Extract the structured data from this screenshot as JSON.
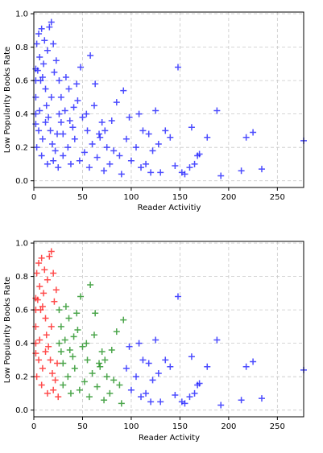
{
  "chart_data": [
    {
      "type": "scatter",
      "marker": "plus",
      "xlabel": "Reader Activitiy",
      "ylabel": "Low Popularity Books Rate",
      "xlim": [
        0,
        277
      ],
      "ylim": [
        -0.04,
        1.01
      ],
      "xticks": [
        0,
        50,
        100,
        150,
        200,
        250
      ],
      "yticks": [
        0.0,
        0.2,
        0.4,
        0.6,
        0.8,
        1.0
      ],
      "xtick_labels": [
        "0",
        "50",
        "100",
        "150",
        "200",
        "250"
      ],
      "ytick_labels": [
        "0.0",
        "0.2",
        "0.4",
        "0.6",
        "0.8",
        "1.0"
      ],
      "grid": true,
      "series": [
        {
          "color": "#0000ff",
          "points": [
            [
              3,
              0.82
            ],
            [
              5,
              0.88
            ],
            [
              6,
              0.74
            ],
            [
              8,
              0.91
            ],
            [
              9,
              0.62
            ],
            [
              11,
              0.84
            ],
            [
              12,
              0.55
            ],
            [
              14,
              0.78
            ],
            [
              16,
              0.92
            ],
            [
              18,
              0.95
            ],
            [
              10,
              0.7
            ],
            [
              7,
              0.6
            ],
            [
              4,
              0.66
            ],
            [
              13,
              0.45
            ],
            [
              15,
              0.38
            ],
            [
              17,
              0.3
            ],
            [
              19,
              0.22
            ],
            [
              20,
              0.12
            ],
            [
              22,
              0.18
            ],
            [
              24,
              0.28
            ],
            [
              25,
              0.08
            ],
            [
              28,
              0.35
            ],
            [
              30,
              0.15
            ],
            [
              32,
              0.42
            ],
            [
              35,
              0.2
            ],
            [
              36,
              0.55
            ],
            [
              38,
              0.1
            ],
            [
              40,
              0.32
            ],
            [
              42,
              0.25
            ],
            [
              45,
              0.48
            ],
            [
              47,
              0.12
            ],
            [
              48,
              0.68
            ],
            [
              50,
              0.38
            ],
            [
              52,
              0.17
            ],
            [
              55,
              0.3
            ],
            [
              57,
              0.08
            ],
            [
              58,
              0.75
            ],
            [
              60,
              0.22
            ],
            [
              62,
              0.45
            ],
            [
              63,
              0.58
            ],
            [
              65,
              0.14
            ],
            [
              67,
              0.28
            ],
            [
              70,
              0.35
            ],
            [
              72,
              0.06
            ],
            [
              75,
              0.2
            ],
            [
              78,
              0.1
            ],
            [
              80,
              0.36
            ],
            [
              85,
              0.47
            ],
            [
              88,
              0.15
            ],
            [
              90,
              0.04
            ],
            [
              92,
              0.54
            ],
            [
              95,
              0.25
            ],
            [
              98,
              0.38
            ],
            [
              100,
              0.12
            ],
            [
              105,
              0.2
            ],
            [
              108,
              0.4
            ],
            [
              110,
              0.08
            ],
            [
              112,
              0.3
            ],
            [
              115,
              0.1
            ],
            [
              118,
              0.28
            ],
            [
              120,
              0.05
            ],
            [
              122,
              0.18
            ],
            [
              125,
              0.42
            ],
            [
              128,
              0.22
            ],
            [
              130,
              0.05
            ],
            [
              135,
              0.3
            ],
            [
              140,
              0.26
            ],
            [
              145,
              0.09
            ],
            [
              148,
              0.68
            ],
            [
              152,
              0.05
            ],
            [
              155,
              0.04
            ],
            [
              160,
              0.08
            ],
            [
              162,
              0.32
            ],
            [
              165,
              0.1
            ],
            [
              168,
              0.15
            ],
            [
              170,
              0.16
            ],
            [
              178,
              0.26
            ],
            [
              188,
              0.42
            ],
            [
              192,
              0.03
            ],
            [
              213,
              0.06
            ],
            [
              218,
              0.26
            ],
            [
              225,
              0.29
            ],
            [
              234,
              0.07
            ],
            [
              277,
              0.24
            ],
            [
              26,
              0.6
            ],
            [
              28,
              0.5
            ],
            [
              33,
              0.62
            ],
            [
              44,
              0.58
            ],
            [
              20,
              0.82
            ],
            [
              21,
              0.65
            ],
            [
              23,
              0.72
            ],
            [
              18,
              0.5
            ],
            [
              12,
              0.35
            ],
            [
              9,
              0.25
            ],
            [
              6,
              0.42
            ],
            [
              5,
              0.3
            ],
            [
              2,
              0.5
            ],
            [
              2,
              0.4
            ],
            [
              2,
              0.6
            ],
            [
              2,
              0.34
            ],
            [
              2,
              0.67
            ],
            [
              3,
              0.2
            ],
            [
              8,
              0.15
            ],
            [
              14,
              0.1
            ],
            [
              26,
              0.4
            ],
            [
              30,
              0.28
            ],
            [
              37,
              0.36
            ],
            [
              41,
              0.44
            ],
            [
              54,
              0.4
            ],
            [
              68,
              0.26
            ],
            [
              73,
              0.3
            ],
            [
              82,
              0.18
            ]
          ]
        }
      ]
    },
    {
      "type": "scatter",
      "marker": "plus",
      "xlabel": "Reader Activity",
      "ylabel": "Low Popularity Books Rate",
      "xlim": [
        0,
        277
      ],
      "ylim": [
        -0.04,
        1.01
      ],
      "xticks": [
        0,
        50,
        100,
        150,
        200,
        250
      ],
      "yticks": [
        0.0,
        0.2,
        0.4,
        0.6,
        0.8,
        1.0
      ],
      "xtick_labels": [
        "0",
        "50",
        "100",
        "150",
        "200",
        "250"
      ],
      "ytick_labels": [
        "0.0",
        "0.2",
        "0.4",
        "0.6",
        "0.8",
        "1.0"
      ],
      "grid": true,
      "series": [
        {
          "color": "#ff0000",
          "points": [
            [
              3,
              0.82
            ],
            [
              5,
              0.88
            ],
            [
              6,
              0.74
            ],
            [
              8,
              0.91
            ],
            [
              9,
              0.62
            ],
            [
              11,
              0.84
            ],
            [
              12,
              0.55
            ],
            [
              14,
              0.78
            ],
            [
              16,
              0.92
            ],
            [
              18,
              0.95
            ],
            [
              10,
              0.7
            ],
            [
              7,
              0.6
            ],
            [
              4,
              0.66
            ],
            [
              13,
              0.45
            ],
            [
              15,
              0.38
            ],
            [
              17,
              0.3
            ],
            [
              19,
              0.22
            ],
            [
              20,
              0.12
            ],
            [
              22,
              0.18
            ],
            [
              24,
              0.28
            ],
            [
              25,
              0.08
            ],
            [
              20,
              0.82
            ],
            [
              21,
              0.65
            ],
            [
              23,
              0.72
            ],
            [
              18,
              0.5
            ],
            [
              12,
              0.35
            ],
            [
              9,
              0.25
            ],
            [
              6,
              0.42
            ],
            [
              5,
              0.3
            ],
            [
              2,
              0.5
            ],
            [
              2,
              0.4
            ],
            [
              2,
              0.6
            ],
            [
              2,
              0.34
            ],
            [
              2,
              0.67
            ],
            [
              3,
              0.2
            ],
            [
              8,
              0.15
            ],
            [
              14,
              0.1
            ]
          ]
        },
        {
          "color": "#008000",
          "points": [
            [
              28,
              0.35
            ],
            [
              30,
              0.15
            ],
            [
              32,
              0.42
            ],
            [
              35,
              0.2
            ],
            [
              36,
              0.55
            ],
            [
              38,
              0.1
            ],
            [
              40,
              0.32
            ],
            [
              42,
              0.25
            ],
            [
              45,
              0.48
            ],
            [
              47,
              0.12
            ],
            [
              48,
              0.68
            ],
            [
              50,
              0.38
            ],
            [
              52,
              0.17
            ],
            [
              55,
              0.3
            ],
            [
              57,
              0.08
            ],
            [
              58,
              0.75
            ],
            [
              60,
              0.22
            ],
            [
              62,
              0.45
            ],
            [
              63,
              0.58
            ],
            [
              65,
              0.14
            ],
            [
              67,
              0.28
            ],
            [
              70,
              0.35
            ],
            [
              72,
              0.06
            ],
            [
              75,
              0.2
            ],
            [
              78,
              0.1
            ],
            [
              80,
              0.36
            ],
            [
              85,
              0.47
            ],
            [
              88,
              0.15
            ],
            [
              90,
              0.04
            ],
            [
              26,
              0.6
            ],
            [
              28,
              0.5
            ],
            [
              33,
              0.62
            ],
            [
              44,
              0.58
            ],
            [
              26,
              0.4
            ],
            [
              30,
              0.28
            ],
            [
              37,
              0.36
            ],
            [
              41,
              0.44
            ],
            [
              54,
              0.4
            ],
            [
              68,
              0.26
            ],
            [
              73,
              0.3
            ],
            [
              82,
              0.18
            ],
            [
              92,
              0.54
            ]
          ]
        },
        {
          "color": "#0000ff",
          "points": [
            [
              95,
              0.25
            ],
            [
              98,
              0.38
            ],
            [
              100,
              0.12
            ],
            [
              105,
              0.2
            ],
            [
              108,
              0.4
            ],
            [
              110,
              0.08
            ],
            [
              112,
              0.3
            ],
            [
              115,
              0.1
            ],
            [
              118,
              0.28
            ],
            [
              120,
              0.05
            ],
            [
              122,
              0.18
            ],
            [
              125,
              0.42
            ],
            [
              128,
              0.22
            ],
            [
              130,
              0.05
            ],
            [
              135,
              0.3
            ],
            [
              140,
              0.26
            ],
            [
              145,
              0.09
            ],
            [
              148,
              0.68
            ],
            [
              152,
              0.05
            ],
            [
              155,
              0.04
            ],
            [
              160,
              0.08
            ],
            [
              162,
              0.32
            ],
            [
              165,
              0.1
            ],
            [
              168,
              0.15
            ],
            [
              170,
              0.16
            ],
            [
              178,
              0.26
            ],
            [
              188,
              0.42
            ],
            [
              192,
              0.03
            ],
            [
              213,
              0.06
            ],
            [
              218,
              0.26
            ],
            [
              225,
              0.29
            ],
            [
              234,
              0.07
            ],
            [
              277,
              0.24
            ]
          ]
        }
      ]
    }
  ]
}
